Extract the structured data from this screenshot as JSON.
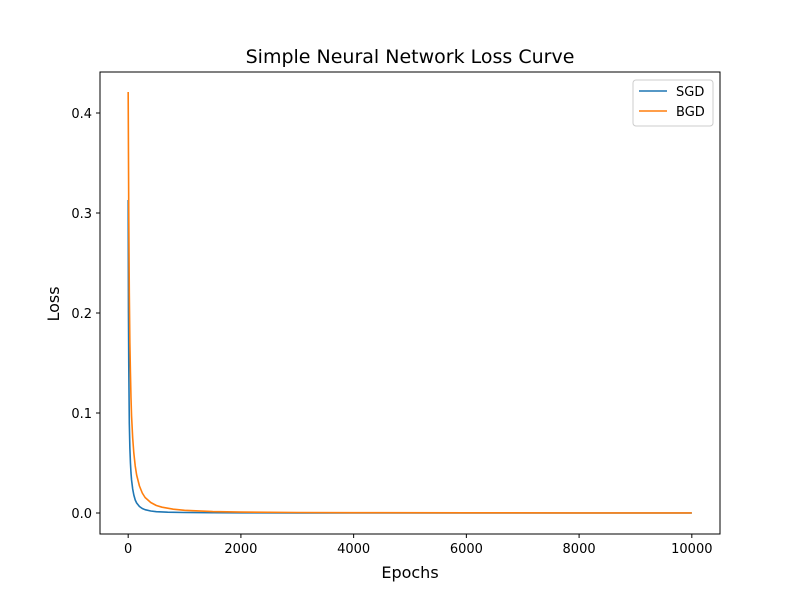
{
  "chart_data": {
    "type": "line",
    "title": "Simple Neural Network Loss Curve",
    "xlabel": "Epochs",
    "ylabel": "Loss",
    "xlim": [
      -500,
      10500
    ],
    "ylim": [
      -0.021,
      0.441
    ],
    "x_ticks": [
      0,
      2000,
      4000,
      6000,
      8000,
      10000
    ],
    "x_tick_labels": [
      "0",
      "2000",
      "4000",
      "6000",
      "8000",
      "10000"
    ],
    "y_ticks": [
      0.0,
      0.1,
      0.2,
      0.3,
      0.4
    ],
    "y_tick_labels": [
      "0.0",
      "0.1",
      "0.2",
      "0.3",
      "0.4"
    ],
    "grid": false,
    "legend_position": "top-right",
    "series": [
      {
        "name": "SGD",
        "color": "#1f77b4",
        "x": [
          0,
          5,
          10,
          20,
          30,
          40,
          50,
          60,
          80,
          100,
          125,
          150,
          200,
          250,
          300,
          400,
          500,
          700,
          1000,
          1500,
          2000,
          3000,
          4000,
          6000,
          8000,
          10000
        ],
        "y": [
          0.313,
          0.2,
          0.15,
          0.09,
          0.065,
          0.05,
          0.04,
          0.033,
          0.024,
          0.018,
          0.013,
          0.01,
          0.0065,
          0.0045,
          0.0033,
          0.002,
          0.0013,
          0.0008,
          0.0005,
          0.0003,
          0.0002,
          0.0001,
          0.0001,
          0.0,
          0.0,
          0.0
        ]
      },
      {
        "name": "BGD",
        "color": "#ff7f0e",
        "x": [
          0,
          5,
          10,
          20,
          30,
          40,
          50,
          60,
          80,
          100,
          125,
          150,
          200,
          250,
          300,
          400,
          500,
          600,
          800,
          1000,
          1500,
          2000,
          3000,
          4000,
          6000,
          8000,
          10000
        ],
        "y": [
          0.421,
          0.36,
          0.3,
          0.22,
          0.17,
          0.14,
          0.115,
          0.097,
          0.075,
          0.06,
          0.047,
          0.038,
          0.027,
          0.02,
          0.0155,
          0.0105,
          0.0075,
          0.0058,
          0.0038,
          0.0027,
          0.0014,
          0.0009,
          0.0005,
          0.0003,
          0.0002,
          0.0001,
          0.0001
        ]
      }
    ]
  }
}
